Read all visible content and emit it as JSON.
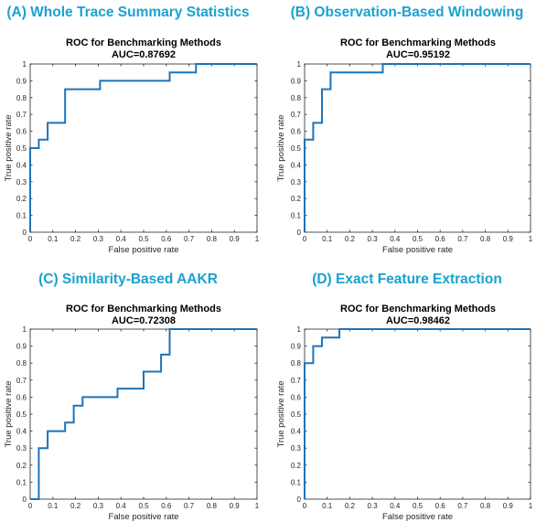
{
  "colors": {
    "heading": "#1aa1cf",
    "line": "#1f73b8",
    "axis": "#262626"
  },
  "panels": [
    {
      "heading": "(A) Whole Trace Summary Statistics",
      "title": "ROC for Benchmarking Methods",
      "auc": "AUC=0.87692"
    },
    {
      "heading": "(B) Observation-Based Windowing",
      "title": "ROC for Benchmarking Methods",
      "auc": "AUC=0.95192"
    },
    {
      "heading": "(C) Similarity-Based AAKR",
      "title": "ROC for Benchmarking Methods",
      "auc": "AUC=0.72308"
    },
    {
      "heading": "(D) Exact Feature Extraction",
      "title": "ROC for Benchmarking Methods",
      "auc": "AUC=0.98462"
    }
  ],
  "chart_data": [
    {
      "type": "line",
      "title": "ROC for Benchmarking Methods",
      "subtitle": "AUC=0.87692",
      "xlabel": "False positive rate",
      "ylabel": "True positive rate",
      "xlim": [
        0,
        1
      ],
      "ylim": [
        0,
        1
      ],
      "xticks": [
        "0",
        "0.1",
        "0.2",
        "0.3",
        "0.4",
        "0.5",
        "0.6",
        "0.7",
        "0.8",
        "0.9",
        "1"
      ],
      "yticks": [
        "0",
        "0.1",
        "0.2",
        "0.3",
        "0.4",
        "0.5",
        "0.6",
        "0.7",
        "0.8",
        "0.9",
        "1"
      ],
      "grid": false,
      "x": [
        0,
        0,
        0.038,
        0.038,
        0.077,
        0.077,
        0.154,
        0.154,
        0.308,
        0.308,
        0.615,
        0.615,
        0.731,
        0.731,
        1
      ],
      "y": [
        0,
        0.5,
        0.5,
        0.55,
        0.55,
        0.65,
        0.65,
        0.85,
        0.85,
        0.9,
        0.9,
        0.95,
        0.95,
        1,
        1
      ]
    },
    {
      "type": "line",
      "title": "ROC for Benchmarking Methods",
      "subtitle": "AUC=0.95192",
      "xlabel": "False positive rate",
      "ylabel": "True positive rate",
      "xlim": [
        0,
        1
      ],
      "ylim": [
        0,
        1
      ],
      "xticks": [
        "0",
        "0.1",
        "0.2",
        "0.3",
        "0.4",
        "0.5",
        "0.6",
        "0.7",
        "0.8",
        "0.9",
        "1"
      ],
      "yticks": [
        "0",
        "0.1",
        "0.2",
        "0.3",
        "0.4",
        "0.5",
        "0.6",
        "0.7",
        "0.8",
        "0.9",
        "1"
      ],
      "grid": false,
      "x": [
        0,
        0,
        0.038,
        0.038,
        0.077,
        0.077,
        0.115,
        0.115,
        0.346,
        0.346,
        1
      ],
      "y": [
        0,
        0.55,
        0.55,
        0.65,
        0.65,
        0.85,
        0.85,
        0.95,
        0.95,
        1,
        1
      ]
    },
    {
      "type": "line",
      "title": "ROC for Benchmarking Methods",
      "subtitle": "AUC=0.72308",
      "xlabel": "False positive rate",
      "ylabel": "True positive rate",
      "xlim": [
        0,
        1
      ],
      "ylim": [
        0,
        1
      ],
      "xticks": [
        "0",
        "0.1",
        "0.2",
        "0.3",
        "0.4",
        "0.5",
        "0.6",
        "0.7",
        "0.8",
        "0.9",
        "1"
      ],
      "yticks": [
        "0",
        "0.1",
        "0.2",
        "0.3",
        "0.4",
        "0.5",
        "0.6",
        "0.7",
        "0.8",
        "0.9",
        "1"
      ],
      "grid": false,
      "x": [
        0,
        0.038,
        0.038,
        0.077,
        0.077,
        0.154,
        0.154,
        0.192,
        0.192,
        0.231,
        0.231,
        0.385,
        0.385,
        0.5,
        0.5,
        0.577,
        0.577,
        0.615,
        0.615,
        1
      ],
      "y": [
        0,
        0,
        0.3,
        0.3,
        0.4,
        0.4,
        0.45,
        0.45,
        0.55,
        0.55,
        0.6,
        0.6,
        0.65,
        0.65,
        0.75,
        0.75,
        0.85,
        0.85,
        1,
        1
      ]
    },
    {
      "type": "line",
      "title": "ROC for Benchmarking Methods",
      "subtitle": "AUC=0.98462",
      "xlabel": "False positive rate",
      "ylabel": "True positive rate",
      "xlim": [
        0,
        1
      ],
      "ylim": [
        0,
        1
      ],
      "xticks": [
        "0",
        "0.1",
        "0.2",
        "0.3",
        "0.4",
        "0.5",
        "0.6",
        "0.7",
        "0.8",
        "0.9",
        "1"
      ],
      "yticks": [
        "0",
        "0.1",
        "0.2",
        "0.3",
        "0.4",
        "0.5",
        "0.6",
        "0.7",
        "0.8",
        "0.9",
        "1"
      ],
      "grid": false,
      "x": [
        0,
        0,
        0.038,
        0.038,
        0.077,
        0.077,
        0.154,
        0.154,
        1
      ],
      "y": [
        0,
        0.8,
        0.8,
        0.9,
        0.9,
        0.95,
        0.95,
        1,
        1
      ]
    }
  ]
}
